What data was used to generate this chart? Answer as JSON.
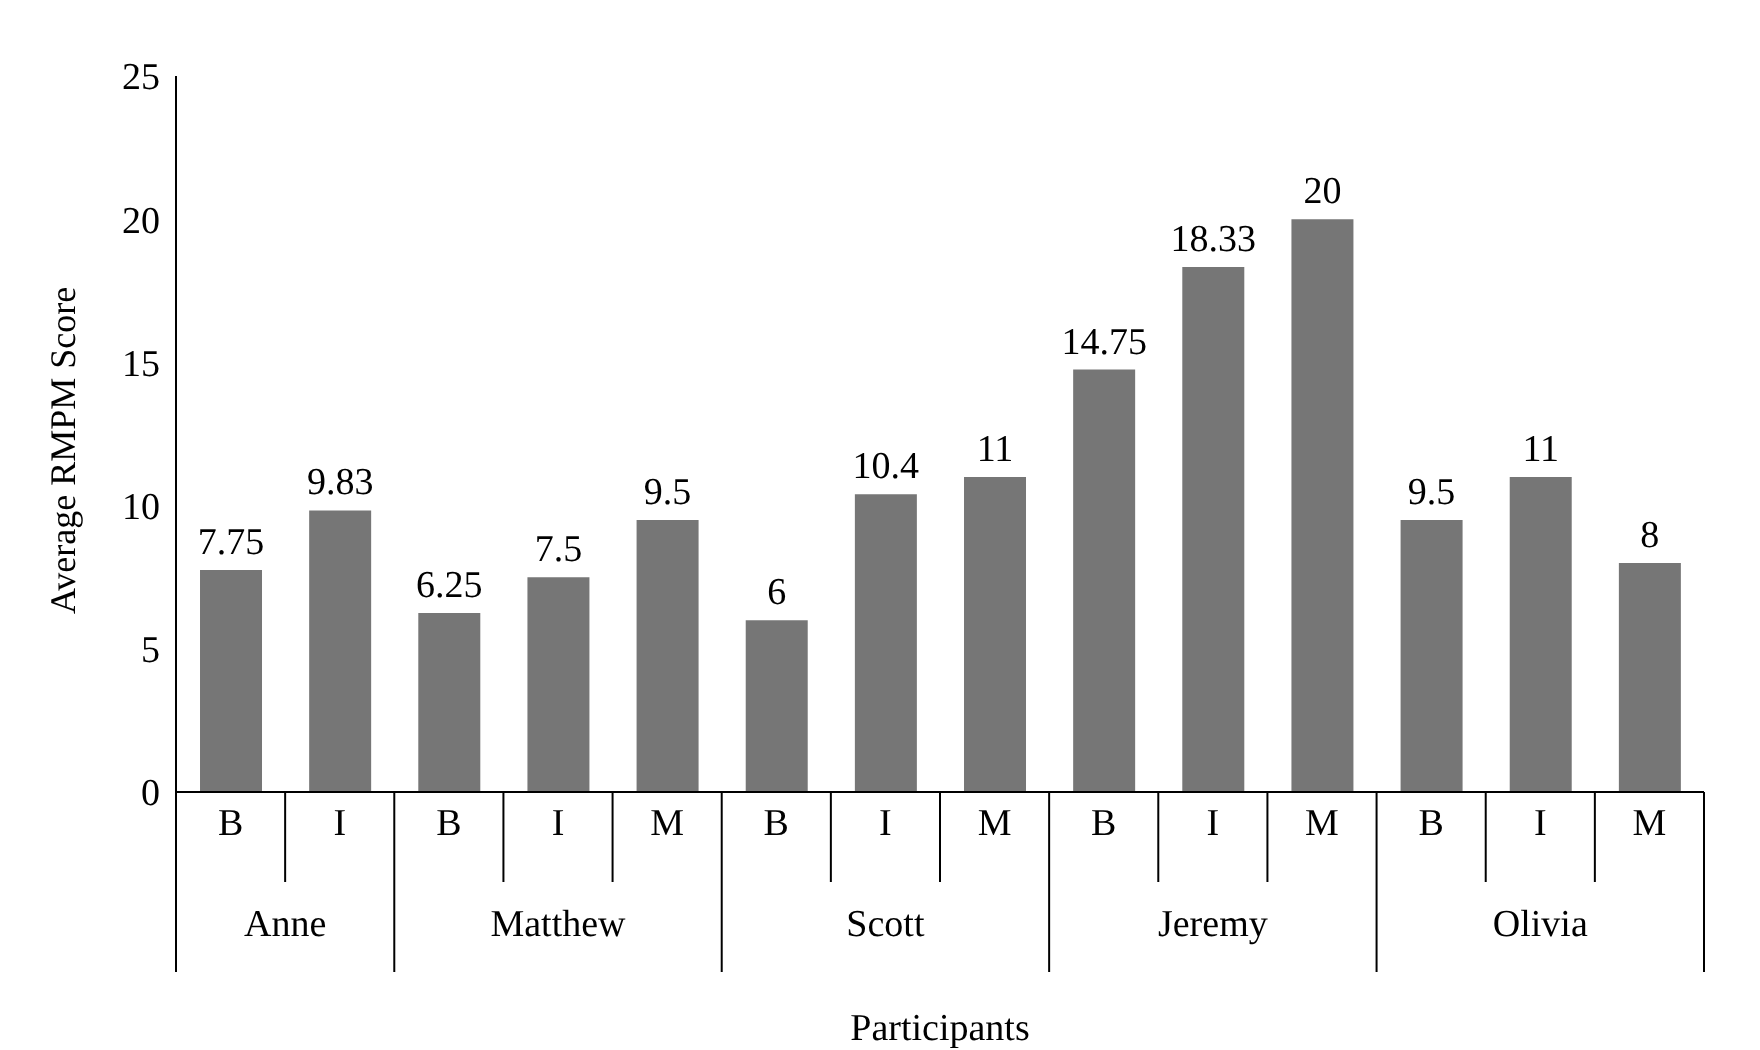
{
  "chart_data": {
    "type": "bar",
    "xlabel": "Participants",
    "ylabel": "Average RMPM Score",
    "categories": [
      "B",
      "I",
      "B",
      "I",
      "M",
      "B",
      "I",
      "M",
      "B",
      "I",
      "M",
      "B",
      "I",
      "M"
    ],
    "values": [
      7.75,
      9.83,
      6.25,
      7.5,
      9.5,
      6,
      10.4,
      11,
      14.75,
      18.33,
      20,
      9.5,
      11,
      8
    ],
    "color": "#767676",
    "ylim": [
      0,
      25
    ],
    "yticks": [
      0,
      5,
      10,
      15,
      20,
      25
    ],
    "grid": false,
    "data_labels": true,
    "legend": false,
    "annotations": [
      "Anne",
      "Matthew",
      "Scott",
      "Jeremy",
      "Olivia"
    ]
  }
}
